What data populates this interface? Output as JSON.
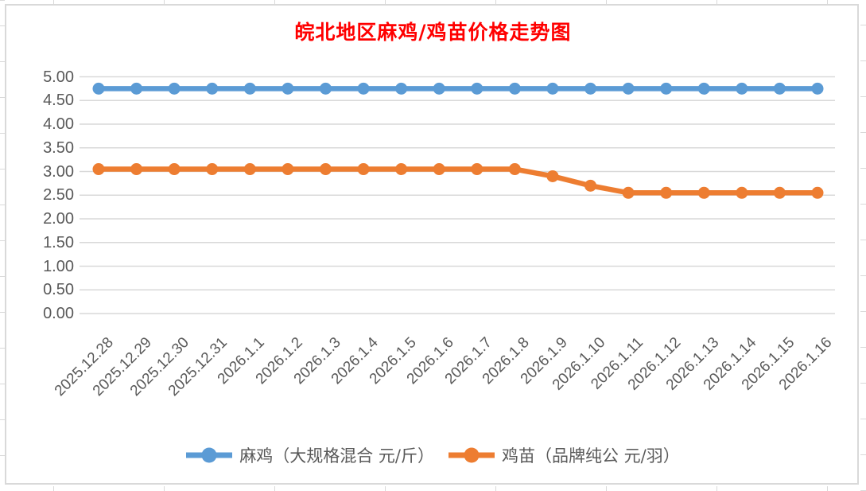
{
  "chart_data": {
    "type": "line",
    "title": "皖北地区麻鸡/鸡苗价格走势图",
    "title_color": "#FF0000",
    "categories": [
      "2025.12.28",
      "2025.12.29",
      "2025.12.30",
      "2025.12.31",
      "2026.1.1",
      "2026.1.2",
      "2026.1.3",
      "2026.1.4",
      "2026.1.5",
      "2026.1.6",
      "2026.1.7",
      "2026.1.8",
      "2026.1.9",
      "2026.1.10",
      "2026.1.11",
      "2026.1.12",
      "2026.1.13",
      "2026.1.14",
      "2026.1.15",
      "2026.1.16"
    ],
    "series": [
      {
        "name": "麻鸡（大规格混合 元/斤）",
        "color": "#5B9BD5",
        "values": [
          4.75,
          4.75,
          4.75,
          4.75,
          4.75,
          4.75,
          4.75,
          4.75,
          4.75,
          4.75,
          4.75,
          4.75,
          4.75,
          4.75,
          4.75,
          4.75,
          4.75,
          4.75,
          4.75,
          4.75
        ]
      },
      {
        "name": "鸡苗（品牌纯公 元/羽）",
        "color": "#ED7D31",
        "values": [
          3.05,
          3.05,
          3.05,
          3.05,
          3.05,
          3.05,
          3.05,
          3.05,
          3.05,
          3.05,
          3.05,
          3.05,
          2.9,
          2.7,
          2.55,
          2.55,
          2.55,
          2.55,
          2.55,
          2.55
        ]
      }
    ],
    "xlabel": "",
    "ylabel": "",
    "ylim": [
      0,
      5
    ],
    "ytick_step": 0.5,
    "ytick_labels": [
      "0.00",
      "0.50",
      "1.00",
      "1.50",
      "2.00",
      "2.50",
      "3.00",
      "3.50",
      "4.00",
      "4.50",
      "5.00"
    ],
    "grid": true,
    "gridline_color": "#D9D9D9",
    "axis_label_color": "#595959",
    "legend_position": "bottom",
    "marker": "circle"
  }
}
